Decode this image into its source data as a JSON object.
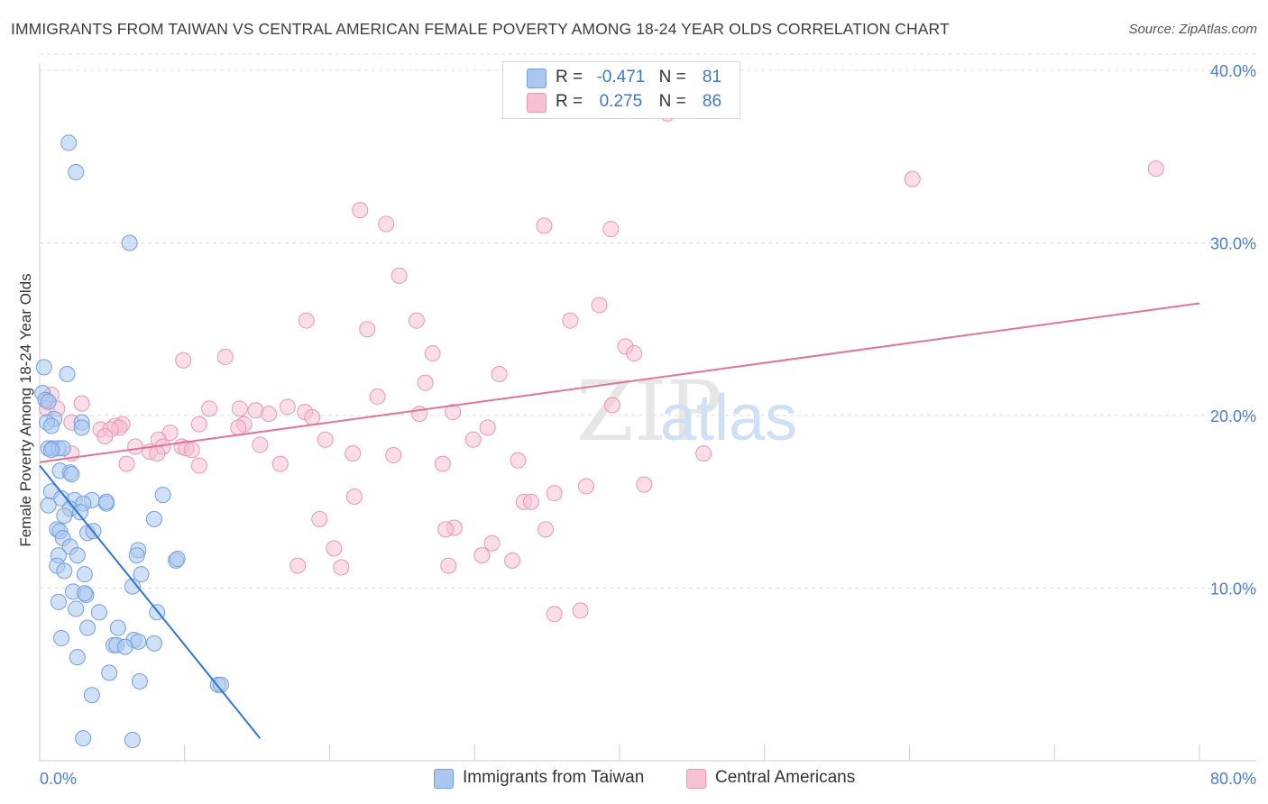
{
  "title": "IMMIGRANTS FROM TAIWAN VS CENTRAL AMERICAN FEMALE POVERTY AMONG 18-24 YEAR OLDS CORRELATION CHART",
  "source": "Source: ZipAtlas.com",
  "watermark": "ZIPatlas",
  "legend": {
    "r_label": "R =",
    "n_label": "N =",
    "series": [
      {
        "r": "-0.471",
        "n": "81"
      },
      {
        "r": "0.275",
        "n": "86"
      }
    ]
  },
  "bottom_legend": [
    "Immigrants from Taiwan",
    "Central Americans"
  ],
  "colors": {
    "blue_fill": "#a9c7f0",
    "blue_stroke": "#6f9fe0",
    "blue_line": "#2e74d3",
    "pink_fill": "#f6c1d2",
    "pink_stroke": "#ea96b2",
    "pink_line": "#e2729a",
    "tick_text": "#4a7fc8",
    "grid": "#dddddd"
  },
  "chart_data": {
    "type": "scatter",
    "title": "IMMIGRANTS FROM TAIWAN VS CENTRAL AMERICAN FEMALE POVERTY AMONG 18-24 YEAR OLDS CORRELATION CHART",
    "xlabel": "",
    "ylabel": "Female Poverty Among 18-24 Year Olds",
    "xlim": [
      0,
      80
    ],
    "ylim": [
      0,
      40
    ],
    "x_tick_labels": [
      "0.0%",
      "80.0%"
    ],
    "y_ticks": [
      10,
      20,
      30,
      40
    ],
    "y_tick_labels": [
      "10.0%",
      "20.0%",
      "30.0%",
      "40.0%"
    ],
    "grid": true,
    "series": [
      {
        "name": "Immigrants from Taiwan",
        "r": -0.471,
        "n": 81,
        "trend": {
          "x": [
            0,
            15.2
          ],
          "y": [
            17.1,
            1.3
          ]
        },
        "points": [
          [
            2.0,
            35.8
          ],
          [
            2.5,
            34.1
          ],
          [
            6.2,
            30.0
          ],
          [
            0.3,
            22.8
          ],
          [
            1.9,
            22.4
          ],
          [
            0.2,
            21.3
          ],
          [
            0.4,
            20.9
          ],
          [
            0.6,
            20.8
          ],
          [
            1.0,
            19.8
          ],
          [
            0.5,
            19.6
          ],
          [
            0.8,
            19.4
          ],
          [
            2.9,
            19.6
          ],
          [
            2.9,
            19.3
          ],
          [
            0.6,
            18.1
          ],
          [
            0.9,
            18.1
          ],
          [
            1.3,
            18.1
          ],
          [
            1.6,
            18.1
          ],
          [
            0.8,
            18.0
          ],
          [
            1.4,
            16.8
          ],
          [
            2.1,
            16.7
          ],
          [
            2.2,
            16.6
          ],
          [
            0.8,
            15.6
          ],
          [
            1.5,
            15.2
          ],
          [
            2.4,
            15.1
          ],
          [
            3.6,
            15.1
          ],
          [
            3.0,
            14.9
          ],
          [
            0.6,
            14.8
          ],
          [
            4.6,
            14.9
          ],
          [
            4.6,
            15.0
          ],
          [
            8.5,
            15.4
          ],
          [
            2.1,
            14.6
          ],
          [
            2.8,
            14.4
          ],
          [
            1.7,
            14.2
          ],
          [
            7.9,
            14.0
          ],
          [
            1.2,
            13.4
          ],
          [
            1.4,
            13.3
          ],
          [
            3.3,
            13.2
          ],
          [
            3.7,
            13.3
          ],
          [
            1.6,
            12.9
          ],
          [
            2.1,
            12.4
          ],
          [
            6.8,
            12.2
          ],
          [
            6.7,
            11.9
          ],
          [
            1.3,
            11.9
          ],
          [
            2.6,
            11.9
          ],
          [
            9.4,
            11.6
          ],
          [
            9.5,
            11.7
          ],
          [
            1.2,
            11.3
          ],
          [
            1.7,
            11.0
          ],
          [
            3.1,
            10.8
          ],
          [
            7.0,
            10.8
          ],
          [
            6.4,
            10.1
          ],
          [
            2.3,
            9.8
          ],
          [
            3.2,
            9.6
          ],
          [
            3.1,
            9.7
          ],
          [
            1.3,
            9.2
          ],
          [
            2.5,
            8.8
          ],
          [
            4.1,
            8.6
          ],
          [
            8.1,
            8.6
          ],
          [
            3.3,
            7.7
          ],
          [
            5.4,
            7.7
          ],
          [
            1.5,
            7.1
          ],
          [
            6.5,
            7.0
          ],
          [
            6.8,
            6.9
          ],
          [
            7.9,
            6.8
          ],
          [
            5.1,
            6.7
          ],
          [
            5.3,
            6.7
          ],
          [
            5.9,
            6.6
          ],
          [
            2.6,
            6.0
          ],
          [
            4.8,
            5.1
          ],
          [
            6.9,
            4.6
          ],
          [
            12.3,
            4.4
          ],
          [
            12.5,
            4.4
          ],
          [
            3.6,
            3.8
          ],
          [
            3.0,
            1.3
          ],
          [
            6.4,
            1.2
          ]
        ]
      },
      {
        "name": "Central Americans",
        "r": 0.275,
        "n": 86,
        "trend": {
          "x": [
            0,
            80
          ],
          "y": [
            17.3,
            26.5
          ]
        },
        "points": [
          [
            43.3,
            37.5
          ],
          [
            77.0,
            34.3
          ],
          [
            60.2,
            33.7
          ],
          [
            22.1,
            31.9
          ],
          [
            23.9,
            31.1
          ],
          [
            34.8,
            31.0
          ],
          [
            39.4,
            30.8
          ],
          [
            24.8,
            28.1
          ],
          [
            38.6,
            26.4
          ],
          [
            18.4,
            25.5
          ],
          [
            26.0,
            25.5
          ],
          [
            36.6,
            25.5
          ],
          [
            22.6,
            25.0
          ],
          [
            40.4,
            24.0
          ],
          [
            41.0,
            23.6
          ],
          [
            27.1,
            23.6
          ],
          [
            12.8,
            23.4
          ],
          [
            9.9,
            23.2
          ],
          [
            31.7,
            22.4
          ],
          [
            26.6,
            21.9
          ],
          [
            0.8,
            21.2
          ],
          [
            23.3,
            21.1
          ],
          [
            2.9,
            20.7
          ],
          [
            0.5,
            20.4
          ],
          [
            1.2,
            20.4
          ],
          [
            39.5,
            20.6
          ],
          [
            17.1,
            20.5
          ],
          [
            11.7,
            20.4
          ],
          [
            13.8,
            20.4
          ],
          [
            18.3,
            20.2
          ],
          [
            14.9,
            20.3
          ],
          [
            15.8,
            20.1
          ],
          [
            26.2,
            20.1
          ],
          [
            28.5,
            20.2
          ],
          [
            18.8,
            19.9
          ],
          [
            2.2,
            19.6
          ],
          [
            5.7,
            19.5
          ],
          [
            14.1,
            19.5
          ],
          [
            5.2,
            19.4
          ],
          [
            5.5,
            19.3
          ],
          [
            11.0,
            19.5
          ],
          [
            13.7,
            19.3
          ],
          [
            30.9,
            19.3
          ],
          [
            4.2,
            19.2
          ],
          [
            4.9,
            19.2
          ],
          [
            9.0,
            19.0
          ],
          [
            8.2,
            18.6
          ],
          [
            19.7,
            18.6
          ],
          [
            29.9,
            18.6
          ],
          [
            15.2,
            18.3
          ],
          [
            6.6,
            18.2
          ],
          [
            9.8,
            18.2
          ],
          [
            8.5,
            18.2
          ],
          [
            10.1,
            18.1
          ],
          [
            10.5,
            18.0
          ],
          [
            7.6,
            17.9
          ],
          [
            8.1,
            17.8
          ],
          [
            2.2,
            17.8
          ],
          [
            21.6,
            17.8
          ],
          [
            24.4,
            17.7
          ],
          [
            45.8,
            17.8
          ],
          [
            33.0,
            17.4
          ],
          [
            6.0,
            17.2
          ],
          [
            16.6,
            17.2
          ],
          [
            27.8,
            17.2
          ],
          [
            11.0,
            17.1
          ],
          [
            41.7,
            16.0
          ],
          [
            37.7,
            15.9
          ],
          [
            35.5,
            15.5
          ],
          [
            21.7,
            15.3
          ],
          [
            33.4,
            15.0
          ],
          [
            33.9,
            15.0
          ],
          [
            19.3,
            14.0
          ],
          [
            28.6,
            13.5
          ],
          [
            28.0,
            13.4
          ],
          [
            34.9,
            13.4
          ],
          [
            31.2,
            12.6
          ],
          [
            20.3,
            12.3
          ],
          [
            30.5,
            11.9
          ],
          [
            32.6,
            11.6
          ],
          [
            17.8,
            11.3
          ],
          [
            20.8,
            11.2
          ],
          [
            28.2,
            11.3
          ],
          [
            35.5,
            8.5
          ],
          [
            37.3,
            8.7
          ],
          [
            4.5,
            18.8
          ]
        ]
      }
    ]
  }
}
